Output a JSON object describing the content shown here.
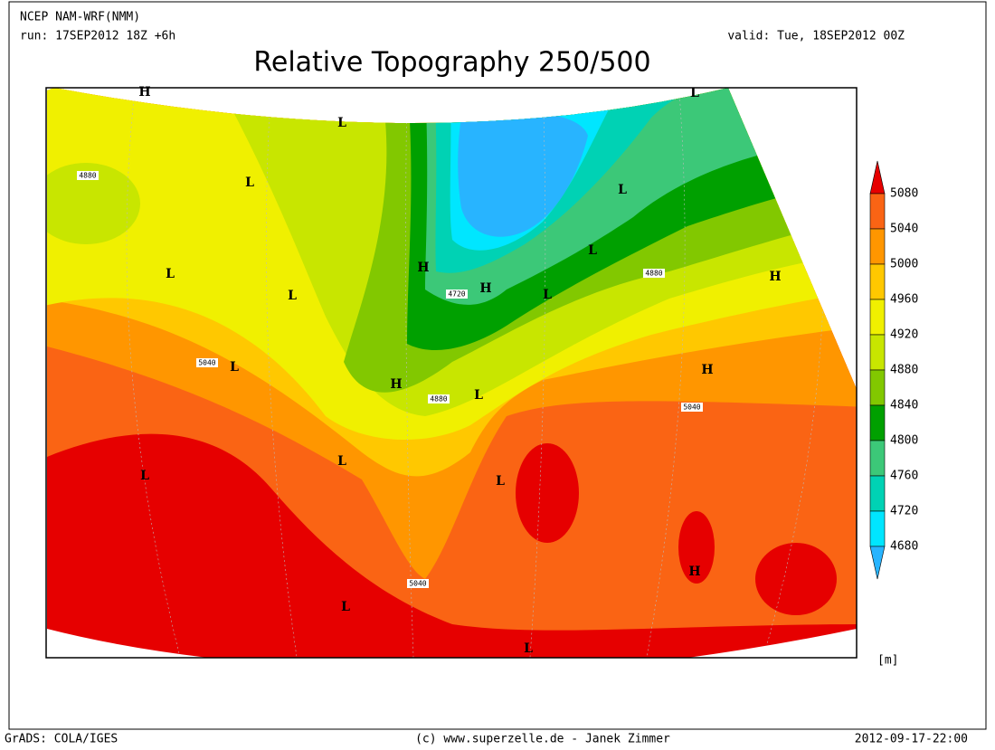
{
  "header": {
    "model": "NCEP NAM-WRF(NMM)",
    "run": "run: 17SEP2012 18Z +6h",
    "valid": "valid: Tue, 18SEP2012 00Z",
    "title": "Relative Topography 250/500"
  },
  "legend": {
    "levels": [
      5080,
      5040,
      5000,
      4960,
      4920,
      4880,
      4840,
      4800,
      4760,
      4720,
      4680
    ],
    "colors": [
      "#e60000",
      "#fa6414",
      "#ff9600",
      "#ffc800",
      "#f0f000",
      "#c8e600",
      "#82c800",
      "#00a000",
      "#3cc878",
      "#00d2b4",
      "#00e6ff",
      "#28b4ff"
    ],
    "unit": "[m]"
  },
  "contour_labels": [
    "4880",
    "5040",
    "4720",
    "4880",
    "4880",
    "5040",
    "5040"
  ],
  "pressure_centers": [
    "H",
    "L",
    "L",
    "L",
    "L",
    "L",
    "H",
    "H",
    "L",
    "L",
    "H",
    "L",
    "L",
    "H",
    "H",
    "L",
    "L",
    "L",
    "L",
    "H",
    "L",
    "L"
  ],
  "footer": {
    "left": "GrADS: COLA/IGES",
    "center": "(c) www.superzelle.de - Janek Zimmer",
    "right": "2012-09-17-22:00"
  }
}
